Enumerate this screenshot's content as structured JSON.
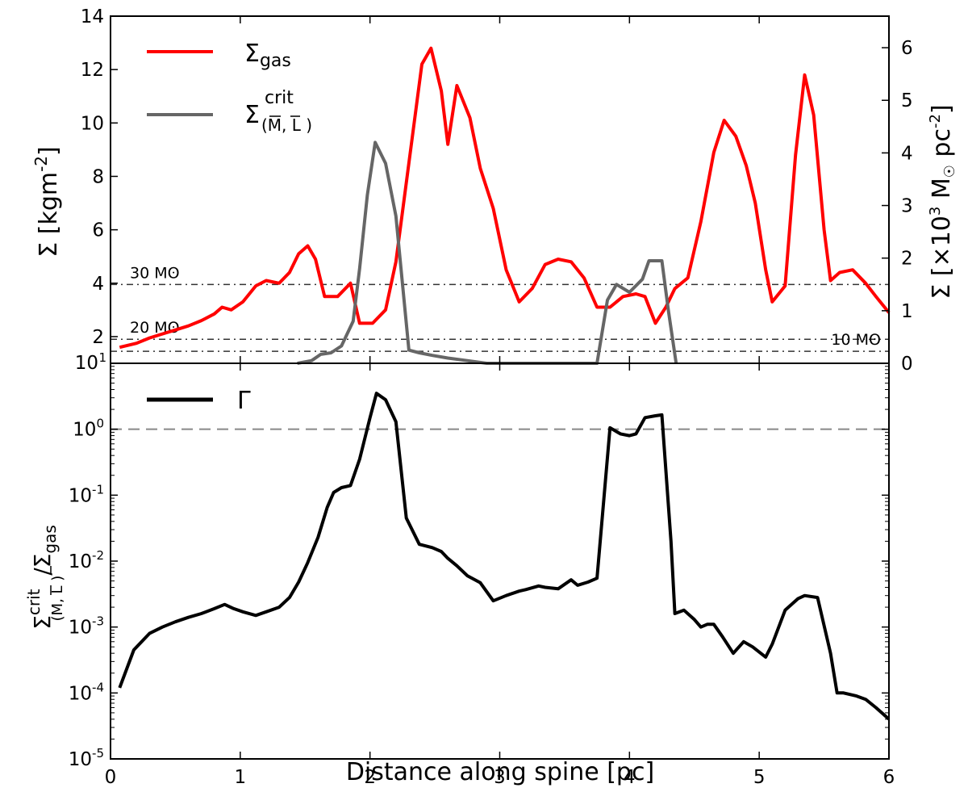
{
  "figure": {
    "xlabel": "Distance along spine [pc]"
  },
  "chart_data": [
    {
      "type": "line",
      "panel": "top",
      "ylabel": "Σ [kgm",
      "ylabel_exp": "-2",
      "ylabel_close": "]",
      "ylabel_right": {
        "pre": "Σ [×10",
        "exp1": "3",
        "mid": " M",
        "sun": "☉",
        "pc": " pc",
        "exp2": "-2",
        "close": "]"
      },
      "xlim": [
        0,
        6
      ],
      "ylim": [
        1,
        14
      ],
      "ylim_right": [
        0,
        6.6
      ],
      "xticks": [
        0,
        1,
        2,
        3,
        4,
        5,
        6
      ],
      "xtick_labels": [
        "0",
        "1",
        "2",
        "3",
        "4",
        "5",
        "6"
      ],
      "yticks": [
        2,
        4,
        6,
        8,
        10,
        12,
        14
      ],
      "ytick_labels": [
        "2",
        "4",
        "6",
        "8",
        "10",
        "12",
        "14"
      ],
      "bottom_tick_label": "10",
      "bottom_tick_exp": "1",
      "yticks_right": [
        0,
        1,
        2,
        3,
        4,
        5,
        6
      ],
      "ytick_right_labels": [
        "0",
        "1",
        "2",
        "3",
        "4",
        "5",
        "6"
      ],
      "hlines": [
        {
          "y": 3.95,
          "label": "30 Mʘ",
          "anchor": "left"
        },
        {
          "y": 1.9,
          "label": "20 Mʘ",
          "anchor": "left"
        },
        {
          "y": 1.45,
          "label": "10 Mʘ",
          "anchor": "right"
        }
      ],
      "series": [
        {
          "name": "Σ_gas",
          "legend_main": "Σ",
          "legend_sub": "gas",
          "color": "#ff0000",
          "x": [
            0.07,
            0.2,
            0.3,
            0.4,
            0.5,
            0.6,
            0.7,
            0.8,
            0.86,
            0.93,
            1.02,
            1.12,
            1.2,
            1.3,
            1.38,
            1.45,
            1.52,
            1.58,
            1.65,
            1.75,
            1.85,
            1.92,
            2.02,
            2.12,
            2.2,
            2.3,
            2.4,
            2.47,
            2.55,
            2.6,
            2.67,
            2.77,
            2.85,
            2.95,
            3.05,
            3.15,
            3.25,
            3.35,
            3.45,
            3.55,
            3.65,
            3.75,
            3.85,
            3.95,
            4.05,
            4.12,
            4.2,
            4.28,
            4.35,
            4.45,
            4.55,
            4.65,
            4.73,
            4.82,
            4.9,
            4.97,
            5.05,
            5.1,
            5.2,
            5.28,
            5.35,
            5.42,
            5.5,
            5.55,
            5.62,
            5.72,
            5.82,
            5.9,
            6.0
          ],
          "y": [
            1.6,
            1.75,
            1.95,
            2.1,
            2.25,
            2.4,
            2.6,
            2.85,
            3.1,
            3.0,
            3.3,
            3.9,
            4.1,
            4.0,
            4.4,
            5.1,
            5.4,
            4.9,
            3.5,
            3.5,
            4.0,
            2.5,
            2.5,
            3.0,
            4.8,
            8.5,
            12.2,
            12.8,
            11.2,
            9.2,
            11.4,
            10.2,
            8.3,
            6.8,
            4.5,
            3.3,
            3.8,
            4.7,
            4.9,
            4.8,
            4.2,
            3.1,
            3.1,
            3.5,
            3.6,
            3.5,
            2.5,
            3.1,
            3.8,
            4.2,
            6.3,
            8.9,
            10.1,
            9.5,
            8.4,
            7.0,
            4.5,
            3.3,
            3.9,
            8.8,
            11.8,
            10.3,
            6.0,
            4.1,
            4.4,
            4.5,
            4.0,
            3.5,
            2.9
          ]
        },
        {
          "name": "Σ^crit_(M̄,L̄)",
          "legend_main": "Σ",
          "legend_sup": "crit",
          "legend_sub": "(M, L )",
          "color": "#666666",
          "axis": "right",
          "x": [
            1.44,
            1.55,
            1.62,
            1.7,
            1.78,
            1.87,
            1.92,
            1.98,
            2.04,
            2.12,
            2.2,
            2.3,
            2.38,
            2.48,
            2.6,
            2.75,
            2.9,
            3.0,
            3.75,
            3.83,
            3.9,
            4.0,
            4.1,
            4.15,
            4.2,
            4.25,
            4.3,
            4.36
          ],
          "y": [
            0.0,
            0.05,
            0.17,
            0.2,
            0.33,
            0.8,
            1.8,
            3.2,
            4.2,
            3.8,
            2.8,
            0.25,
            0.2,
            0.15,
            0.1,
            0.05,
            0.0,
            0.0,
            0.0,
            1.2,
            1.5,
            1.35,
            1.6,
            1.95,
            1.95,
            1.95,
            1.0,
            0.0
          ]
        }
      ]
    },
    {
      "type": "line",
      "panel": "bottom",
      "scale": "log",
      "ylabel_main": "Σ",
      "ylabel_sup": "crit",
      "ylabel_sub": "(M, L )",
      "ylabel_slash": "/Σ",
      "ylabel_sub2": "gas",
      "xlim": [
        0,
        6
      ],
      "ylim": [
        1e-05,
        10
      ],
      "yticks_exp": [
        -5,
        -4,
        -3,
        -2,
        -1,
        0
      ],
      "ytick_base": "10",
      "ytick_exps": [
        "-5",
        "-4",
        "-3",
        "-2",
        "-1",
        "0"
      ],
      "hline": {
        "y": 1.0
      },
      "series": [
        {
          "name": "Γ",
          "legend_label": "Γ",
          "color": "#000000",
          "x": [
            0.07,
            0.18,
            0.3,
            0.4,
            0.5,
            0.6,
            0.7,
            0.8,
            0.88,
            0.95,
            1.02,
            1.12,
            1.2,
            1.3,
            1.38,
            1.45,
            1.52,
            1.6,
            1.67,
            1.72,
            1.78,
            1.85,
            1.92,
            2.0,
            2.05,
            2.12,
            2.2,
            2.28,
            2.38,
            2.48,
            2.55,
            2.6,
            2.67,
            2.75,
            2.85,
            2.95,
            3.05,
            3.15,
            3.2,
            3.3,
            3.35,
            3.45,
            3.55,
            3.6,
            3.68,
            3.75,
            3.85,
            3.93,
            4.0,
            4.05,
            4.12,
            4.2,
            4.25,
            4.32,
            4.35,
            4.42,
            4.5,
            4.55,
            4.6,
            4.65,
            4.72,
            4.8,
            4.88,
            4.95,
            5.05,
            5.1,
            5.2,
            5.3,
            5.35,
            5.45,
            5.55,
            5.6,
            5.65,
            5.75,
            5.82,
            5.9,
            6.0
          ],
          "y": [
            0.00012,
            0.00045,
            0.0008,
            0.001,
            0.0012,
            0.0014,
            0.0016,
            0.0019,
            0.0022,
            0.0019,
            0.0017,
            0.0015,
            0.0017,
            0.002,
            0.0028,
            0.0048,
            0.0095,
            0.023,
            0.065,
            0.11,
            0.13,
            0.14,
            0.35,
            1.5,
            3.5,
            2.8,
            1.3,
            0.045,
            0.018,
            0.016,
            0.014,
            0.011,
            0.0085,
            0.006,
            0.0047,
            0.0025,
            0.003,
            0.0035,
            0.0037,
            0.0042,
            0.004,
            0.0038,
            0.0052,
            0.0043,
            0.0048,
            0.0055,
            1.05,
            0.85,
            0.8,
            0.85,
            1.5,
            1.6,
            1.65,
            0.02,
            0.0016,
            0.0018,
            0.0013,
            0.001,
            0.0011,
            0.0011,
            0.0007,
            0.0004,
            0.0006,
            0.0005,
            0.00035,
            0.00055,
            0.0018,
            0.0027,
            0.003,
            0.0028,
            0.0004,
            0.0001,
            0.0001,
            9e-05,
            8e-05,
            6e-05,
            4e-05
          ]
        }
      ]
    }
  ]
}
